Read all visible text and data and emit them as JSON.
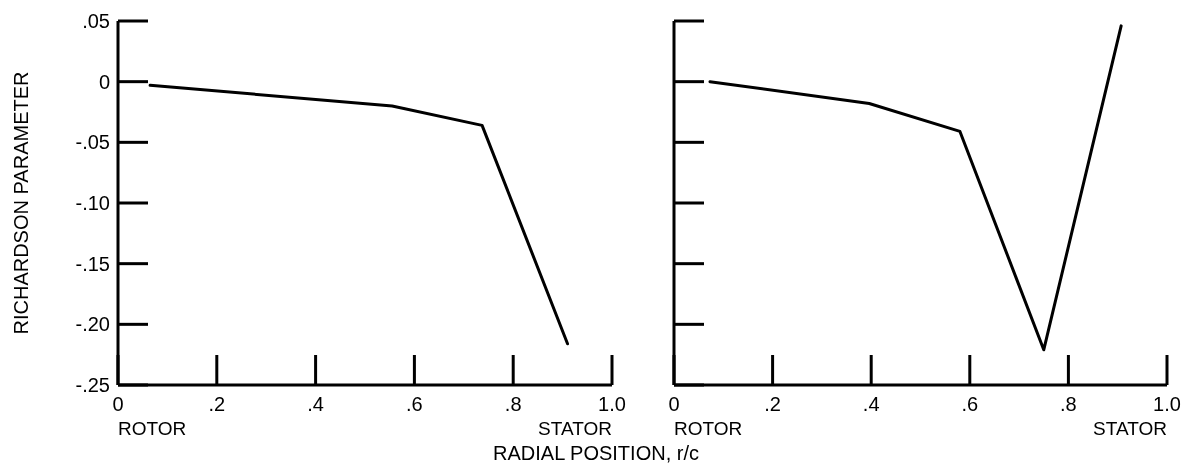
{
  "chart_data": [
    {
      "type": "line",
      "ylabel": "RICHARDSON PARAMETER",
      "xlabel": "RADIAL POSITION, r/c",
      "annotations": [
        "ROTOR",
        "STATOR"
      ],
      "xlim": [
        0,
        1
      ],
      "xticks": [
        0,
        {
          "value": 0.2,
          "label": ".2"
        },
        {
          "value": 0.4,
          "label": ".4"
        },
        {
          "value": 0.6,
          "label": ".6"
        },
        {
          "value": 0.8,
          "label": ".8"
        },
        {
          "value": 1,
          "label": "1.0"
        }
      ],
      "ylim": [
        -0.25,
        0.05
      ],
      "yticks": [
        {
          "value": 0.05,
          "label": ".05"
        },
        0,
        {
          "value": -0.05,
          "label": "-.05"
        },
        {
          "value": -0.1,
          "label": "-.10"
        },
        {
          "value": -0.15,
          "label": "-.15"
        },
        {
          "value": -0.2,
          "label": "-.20"
        },
        {
          "value": -0.25,
          "label": "-.25"
        }
      ],
      "series": [
        {
          "color": "#000000",
          "x": [
            0.065,
            0.555,
            0.737,
            0.91
          ],
          "values": [
            -0.003,
            -0.02,
            -0.036,
            -0.216
          ]
        }
      ]
    },
    {
      "type": "line",
      "annotations": [
        "ROTOR",
        "STATOR"
      ],
      "tick_labels": "x",
      "xlim": [
        0,
        1
      ],
      "xticks": [
        0,
        {
          "value": 0.2,
          "label": ".2"
        },
        {
          "value": 0.4,
          "label": ".4"
        },
        {
          "value": 0.6,
          "label": ".6"
        },
        {
          "value": 0.8,
          "label": ".8"
        },
        {
          "value": 1,
          "label": "1.0"
        }
      ],
      "ylim": [
        -0.25,
        0.05
      ],
      "yticks": [
        0.05,
        0,
        -0.05,
        -0.1,
        -0.15,
        -0.2,
        -0.25
      ],
      "series": [
        {
          "color": "#000000",
          "x": [
            0.073,
            0.396,
            0.58,
            0.75,
            0.907
          ],
          "values": [
            0.0,
            -0.018,
            -0.041,
            -0.221,
            0.046
          ]
        }
      ]
    }
  ]
}
